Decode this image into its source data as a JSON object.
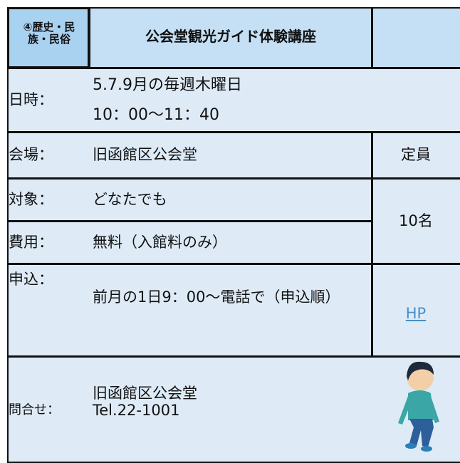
{
  "header": {
    "category": "④歴史・民族・民俗",
    "title": "公会堂観光ガイド体験講座"
  },
  "rows": [
    {
      "label": "日時：",
      "lines": [
        "5.7.9月の毎週木曜日",
        "10：00～11：40"
      ]
    },
    {
      "label": "会場：",
      "lines": [
        "旧函館区公会堂"
      ]
    },
    {
      "label": "対象：",
      "lines": [
        "どなたでも"
      ]
    },
    {
      "label": "費用：",
      "lines": [
        "無料（入館料のみ）"
      ]
    },
    {
      "label": "申込：",
      "lines": [
        "前月の1日9：00～電話で（申込順）"
      ]
    },
    {
      "label": "問合せ：",
      "lines": [
        "旧函館区公会堂",
        "Tel.22-1001"
      ]
    }
  ],
  "capacity": {
    "label": "定員",
    "value": "10名"
  },
  "link": "HP"
}
